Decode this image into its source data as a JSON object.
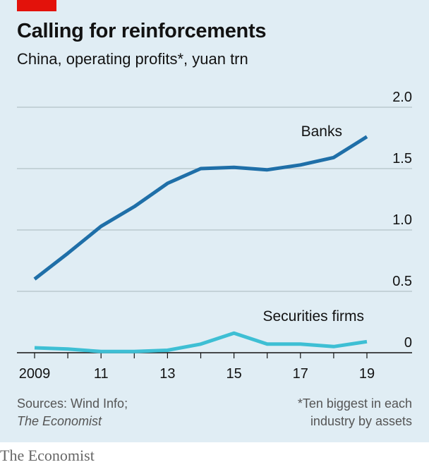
{
  "header": {
    "title": "Calling for reinforcements",
    "subtitle": "China, operating profits*, yuan trn"
  },
  "chart_data": {
    "type": "line",
    "x": [
      2009,
      2010,
      2011,
      2012,
      2013,
      2014,
      2015,
      2016,
      2017,
      2018,
      2019
    ],
    "x_tick_labels": [
      {
        "x": 2009,
        "label": "2009"
      },
      {
        "x": 2011,
        "label": "11"
      },
      {
        "x": 2013,
        "label": "13"
      },
      {
        "x": 2015,
        "label": "15"
      },
      {
        "x": 2017,
        "label": "17"
      },
      {
        "x": 2019,
        "label": "19"
      }
    ],
    "y_tick_labels": [
      {
        "y": 0,
        "label": "0"
      },
      {
        "y": 0.5,
        "label": "0.5"
      },
      {
        "y": 1.0,
        "label": "1.0"
      },
      {
        "y": 1.5,
        "label": "1.5"
      },
      {
        "y": 2.0,
        "label": "2.0"
      }
    ],
    "xlim": [
      2009,
      2019
    ],
    "ylim": [
      0,
      2.0
    ],
    "grid": "horizontal",
    "y_axis_side": "right",
    "series": [
      {
        "name": "Banks",
        "color": "#1f6fa8",
        "values": [
          0.6,
          0.81,
          1.03,
          1.19,
          1.38,
          1.5,
          1.51,
          1.49,
          1.53,
          1.59,
          1.76
        ]
      },
      {
        "name": "Securities firms",
        "color": "#3ebfd4",
        "values": [
          0.04,
          0.03,
          0.01,
          0.01,
          0.02,
          0.07,
          0.16,
          0.07,
          0.07,
          0.05,
          0.09
        ]
      }
    ]
  },
  "footer": {
    "sources": "Sources: Wind Info;",
    "publication": "The Economist",
    "note_line1": "*Ten biggest in each",
    "note_line2": "industry by assets",
    "brand": "The Economist"
  }
}
